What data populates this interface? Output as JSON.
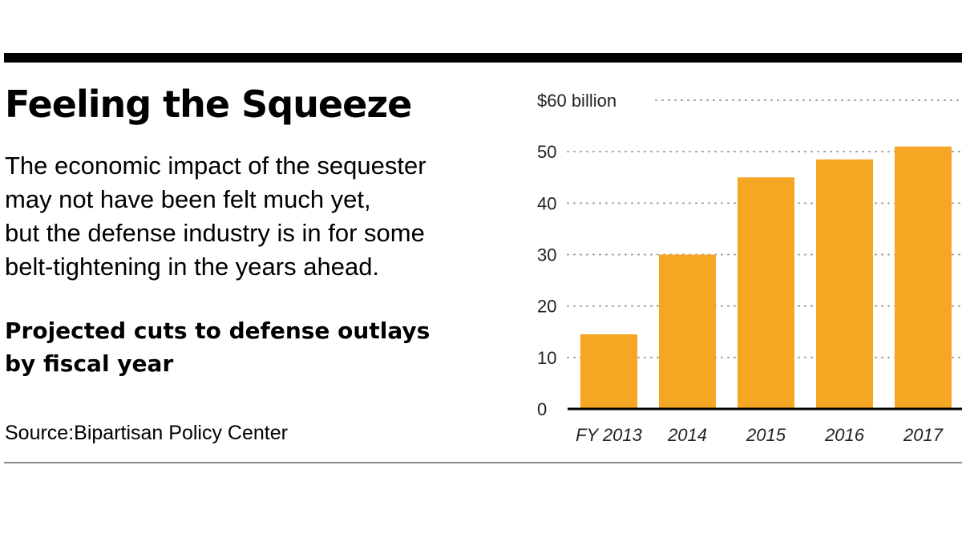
{
  "header": {
    "title": "Feeling the Squeeze",
    "description_lines": [
      "The economic impact of the sequester",
      "may not have been felt much yet,",
      "but the defense industry is in for some",
      "belt-tightening in the years ahead."
    ],
    "subtitle_lines": [
      "Projected cuts to defense outlays",
      "by fiscal year"
    ],
    "source": "Source:Bipartisan Policy Center"
  },
  "colors": {
    "bar": "#f5a623",
    "rule": "#000000",
    "gridline": "#9a9a9a"
  },
  "chart_data": {
    "type": "bar",
    "categories": [
      "FY 2013",
      "2014",
      "2015",
      "2016",
      "2017"
    ],
    "values": [
      14.5,
      30,
      45,
      48.5,
      51
    ],
    "ylim": [
      0,
      60
    ],
    "yticks": [
      0,
      10,
      20,
      30,
      40,
      50,
      60
    ],
    "ytick_labels": [
      "0",
      "10",
      "20",
      "30",
      "40",
      "50",
      "$60 billion"
    ],
    "grid": true,
    "grid_style": "dotted",
    "legend": false
  }
}
